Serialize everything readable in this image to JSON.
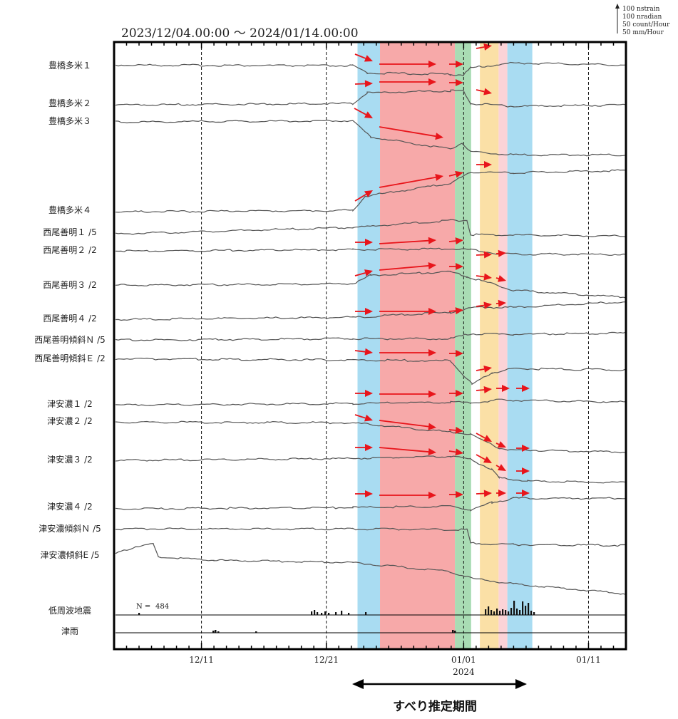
{
  "chart_data": {
    "type": "line",
    "title": "2023/12/04.00:00 ～ 2024/01/14.00:00",
    "scale_legend": [
      "100 nstrain",
      "100 nradian",
      "50 count/Hour",
      "50 mm/Hour"
    ],
    "x_ticks": [
      {
        "label": "12/11",
        "day": 7
      },
      {
        "label": "12/21",
        "day": 17
      },
      {
        "label": "01/01",
        "day": 28,
        "sub": "2024"
      },
      {
        "label": "01/11",
        "day": 38
      }
    ],
    "x_range_days": [
      0,
      41
    ],
    "period_label": "すべり推定期間",
    "period_days": [
      19.5,
      33.5
    ],
    "bands": [
      {
        "start": 19.5,
        "end": 21.3,
        "color": "#a9dcf2"
      },
      {
        "start": 21.3,
        "end": 27.3,
        "color": "#f7a9a9"
      },
      {
        "start": 27.3,
        "end": 28.6,
        "color": "#a9dcb4"
      },
      {
        "start": 29.3,
        "end": 30.8,
        "color": "#fbe0a6"
      },
      {
        "start": 30.8,
        "end": 31.5,
        "color": "#fbd3d7"
      },
      {
        "start": 31.5,
        "end": 33.5,
        "color": "#a9dcf2"
      }
    ],
    "eq_count_label": "N = ",
    "eq_count": "484",
    "series": [
      {
        "name": "豊橋多米１"
      },
      {
        "name": "豊橋多米２"
      },
      {
        "name": "豊橋多米３"
      },
      {
        "name": "豊橋多米４"
      },
      {
        "name": "西尾善明１ /5"
      },
      {
        "name": "西尾善明２ /2"
      },
      {
        "name": "西尾善明３ /2"
      },
      {
        "name": "西尾善明４ /2"
      },
      {
        "name": "西尾善明傾斜Ｎ /5"
      },
      {
        "name": "西尾善明傾斜Ｅ /2"
      },
      {
        "name": "津安濃１ /2"
      },
      {
        "name": "津安濃２ /2"
      },
      {
        "name": "津安濃３ /2"
      },
      {
        "name": "津安濃４ /2"
      },
      {
        "name": "津安濃傾斜Ｎ /5"
      },
      {
        "name": "津安濃傾斜E /5"
      },
      {
        "name": "低周波地震"
      },
      {
        "name": "津雨"
      }
    ]
  }
}
